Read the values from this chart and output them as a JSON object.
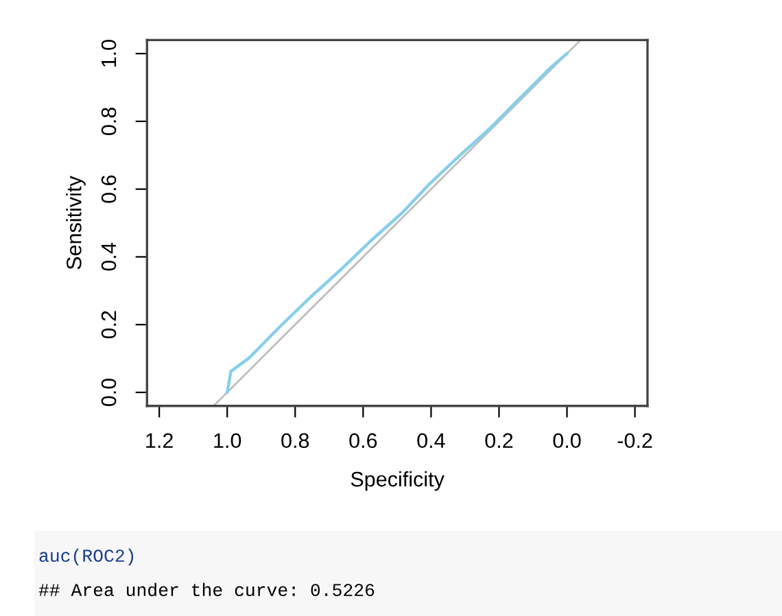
{
  "chart_data": {
    "type": "line",
    "xlabel": "Specificity",
    "ylabel": "Sensitivity",
    "series": [
      {
        "color": "#bebebe",
        "x": [
          1.04,
          -0.04
        ],
        "values": [
          -0.04,
          1.04
        ]
      },
      {
        "color": "#87ceeb",
        "x": [
          1.0,
          0.989,
          0.935,
          0.848,
          0.754,
          0.666,
          0.579,
          0.484,
          0.404,
          0.316,
          0.222,
          0.135,
          0.047,
          0.0
        ],
        "values": [
          0.0,
          0.062,
          0.102,
          0.191,
          0.282,
          0.362,
          0.446,
          0.531,
          0.616,
          0.699,
          0.784,
          0.872,
          0.96,
          1.0
        ]
      }
    ],
    "xlim": [
      1.236,
      -0.237
    ],
    "ylim": [
      -0.04,
      1.04
    ],
    "xticks": [
      {
        "value": 1.2,
        "label": "1.2"
      },
      {
        "value": 1.0,
        "label": "1.0"
      },
      {
        "value": 0.8,
        "label": "0.8"
      },
      {
        "value": 0.6,
        "label": "0.6"
      },
      {
        "value": 0.4,
        "label": "0.4"
      },
      {
        "value": 0.2,
        "label": "0.2"
      },
      {
        "value": 0.0,
        "label": "0.0"
      },
      {
        "value": -0.2,
        "label": "-0.2"
      }
    ],
    "yticks": [
      {
        "value": 0.0,
        "label": "0.0"
      },
      {
        "value": 0.2,
        "label": "0.2"
      },
      {
        "value": 0.4,
        "label": "0.4"
      },
      {
        "value": 0.6,
        "label": "0.6"
      },
      {
        "value": 0.8,
        "label": "0.8"
      },
      {
        "value": 1.0,
        "label": "1.0"
      }
    ],
    "grid": false,
    "legend": false,
    "annotations": [
      "auc(ROC2)",
      "## Area under the curve: 0.5226"
    ]
  }
}
